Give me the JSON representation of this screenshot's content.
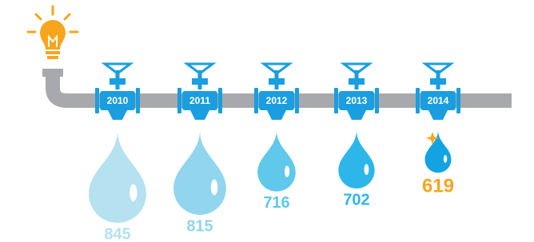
{
  "chart_data": {
    "type": "drop",
    "categories": [
      "2010",
      "2011",
      "2012",
      "2013",
      "2014"
    ],
    "values": [
      845,
      815,
      716,
      702,
      619
    ],
    "colors": [
      "#b5e1f0",
      "#92d5ee",
      "#5fc8eb",
      "#2db6ea",
      "#14a3e2"
    ],
    "label_colors": [
      "#b5e1f0",
      "#92d5ee",
      "#5fc8eb",
      "#2db6ea",
      "#f7a51c"
    ]
  }
}
